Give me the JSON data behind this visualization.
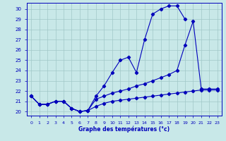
{
  "xlabel": "Graphe des températures (°c)",
  "bg_color": "#c8e8e8",
  "grid_color": "#a0c8c8",
  "line_color": "#0000bb",
  "xlim": [
    -0.5,
    23.5
  ],
  "ylim": [
    19.6,
    30.6
  ],
  "x_ticks": [
    0,
    1,
    2,
    3,
    4,
    5,
    6,
    7,
    8,
    9,
    10,
    11,
    12,
    13,
    14,
    15,
    16,
    17,
    18,
    19,
    20,
    21,
    22,
    23
  ],
  "y_ticks": [
    20,
    21,
    22,
    23,
    24,
    25,
    26,
    27,
    28,
    29,
    30
  ],
  "line1_x": [
    0,
    1,
    2,
    3,
    4,
    5,
    6,
    7,
    8,
    9,
    10,
    11,
    12,
    13,
    14,
    15,
    16,
    17,
    18,
    19
  ],
  "line1_y": [
    21.5,
    20.7,
    20.7,
    21.0,
    21.0,
    20.3,
    20.0,
    20.1,
    21.5,
    22.5,
    23.8,
    25.0,
    25.3,
    23.8,
    27.0,
    29.5,
    30.0,
    30.3,
    30.3,
    29.0
  ],
  "line2_x": [
    0,
    1,
    2,
    3,
    4,
    5,
    6,
    7,
    8,
    9,
    10,
    11,
    12,
    13,
    14,
    15,
    16,
    17,
    18,
    19,
    20,
    21,
    22,
    23
  ],
  "line2_y": [
    21.5,
    20.7,
    20.7,
    21.0,
    21.0,
    20.3,
    20.0,
    20.1,
    21.2,
    21.5,
    21.8,
    22.0,
    22.2,
    22.5,
    22.7,
    23.0,
    23.3,
    23.6,
    24.0,
    26.5,
    28.8,
    22.2,
    22.2,
    22.2
  ],
  "line3_x": [
    0,
    1,
    2,
    3,
    4,
    5,
    6,
    7,
    8,
    9,
    10,
    11,
    12,
    13,
    14,
    15,
    16,
    17,
    18,
    19,
    20,
    21,
    22,
    23
  ],
  "line3_y": [
    21.5,
    20.7,
    20.7,
    21.0,
    21.0,
    20.3,
    20.0,
    20.1,
    20.5,
    20.8,
    21.0,
    21.1,
    21.2,
    21.3,
    21.4,
    21.5,
    21.6,
    21.7,
    21.8,
    21.9,
    22.0,
    22.1,
    22.1,
    22.1
  ]
}
